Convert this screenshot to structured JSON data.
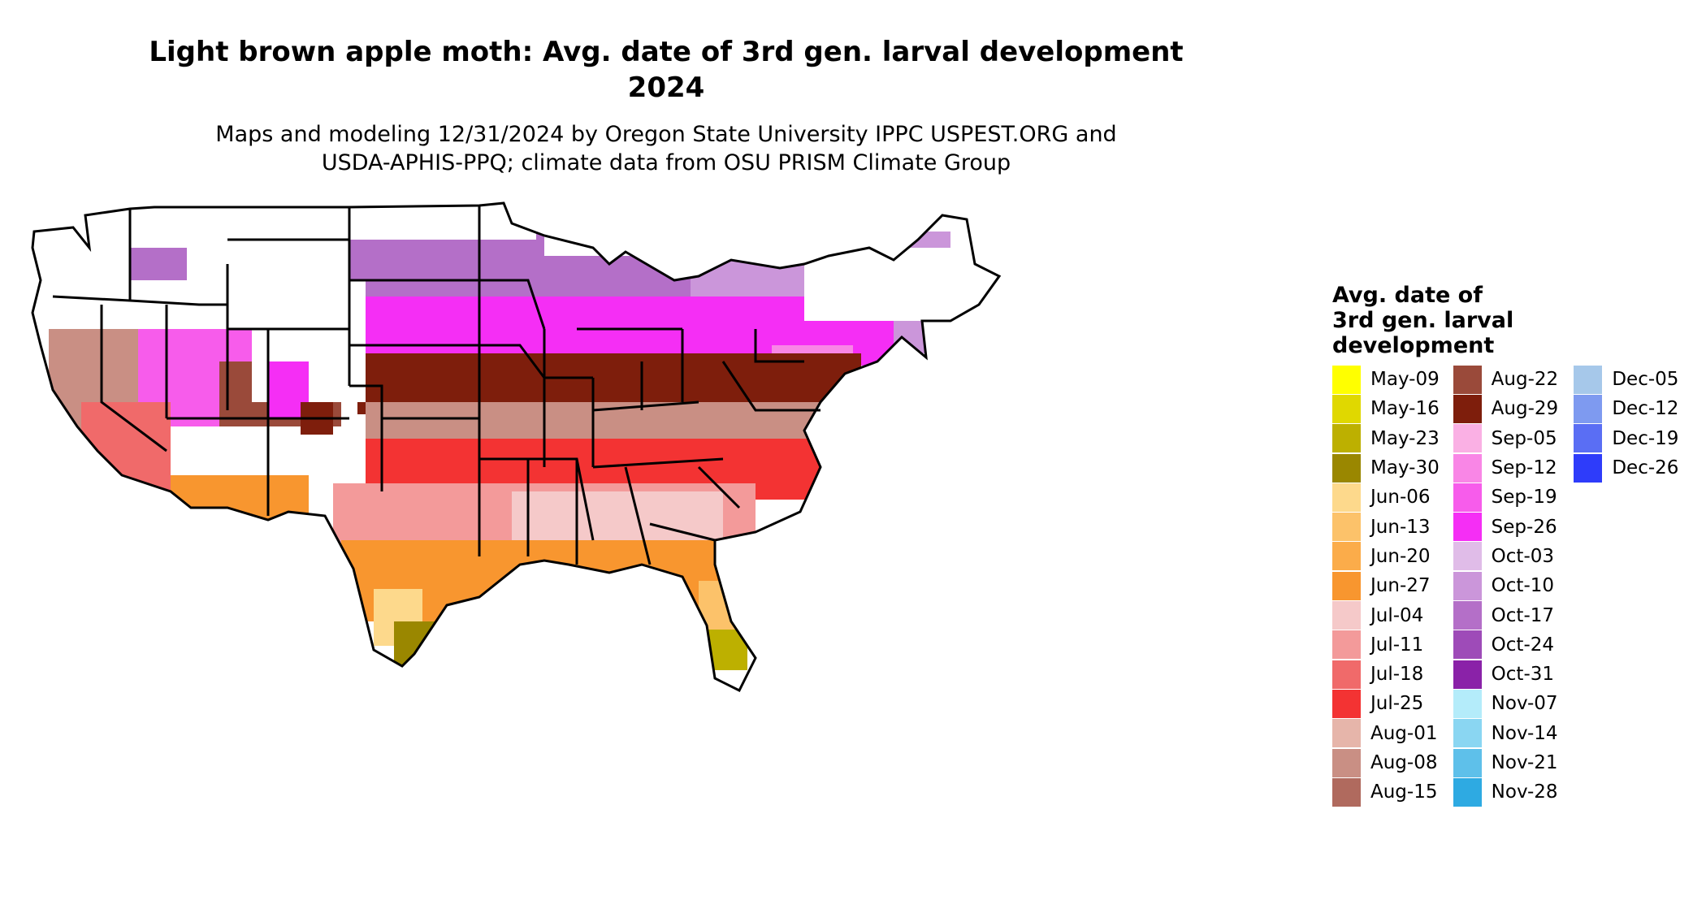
{
  "title": "Light brown apple moth: Avg. date of 3rd gen. larval development",
  "year": "2024",
  "subtitle_line1": "Maps and modeling 12/31/2024 by Oregon State University IPPC USPEST.ORG and",
  "subtitle_line2": "USDA-APHIS-PPQ; climate data from OSU PRISM Climate Group",
  "legend": {
    "title_line1": "Avg. date of",
    "title_line2": "3rd gen. larval",
    "title_line3": "development",
    "columns": [
      [
        {
          "label": "May-09",
          "color": "#ffff00"
        },
        {
          "label": "May-16",
          "color": "#e0d800"
        },
        {
          "label": "May-23",
          "color": "#bdb000"
        },
        {
          "label": "May-30",
          "color": "#9a8700"
        },
        {
          "label": "Jun-06",
          "color": "#fdd98c"
        },
        {
          "label": "Jun-13",
          "color": "#fcc26a"
        },
        {
          "label": "Jun-20",
          "color": "#fbac4a"
        },
        {
          "label": "Jun-27",
          "color": "#f8962f"
        },
        {
          "label": "Jul-04",
          "color": "#f5c9c9"
        },
        {
          "label": "Jul-11",
          "color": "#f39a9a"
        },
        {
          "label": "Jul-18",
          "color": "#f06a6a"
        },
        {
          "label": "Jul-25",
          "color": "#f33333"
        },
        {
          "label": "Aug-01",
          "color": "#e6b5aa"
        },
        {
          "label": "Aug-08",
          "color": "#c98f84"
        },
        {
          "label": "Aug-15",
          "color": "#b06a5e"
        }
      ],
      [
        {
          "label": "Aug-22",
          "color": "#9a4a3a"
        },
        {
          "label": "Aug-29",
          "color": "#7e1e0c"
        },
        {
          "label": "Sep-05",
          "color": "#fab0e4"
        },
        {
          "label": "Sep-12",
          "color": "#f986e6"
        },
        {
          "label": "Sep-19",
          "color": "#f75ceb"
        },
        {
          "label": "Sep-26",
          "color": "#f52ef5"
        },
        {
          "label": "Oct-03",
          "color": "#e0bce8"
        },
        {
          "label": "Oct-10",
          "color": "#cb96da"
        },
        {
          "label": "Oct-17",
          "color": "#b46fc8"
        },
        {
          "label": "Oct-24",
          "color": "#9e4bb8"
        },
        {
          "label": "Oct-31",
          "color": "#8a22a8"
        },
        {
          "label": "Nov-07",
          "color": "#b4ecfa"
        },
        {
          "label": "Nov-14",
          "color": "#8ad6f2"
        },
        {
          "label": "Nov-21",
          "color": "#5ec0ea"
        },
        {
          "label": "Nov-28",
          "color": "#2eaae2"
        }
      ],
      [
        {
          "label": "Dec-05",
          "color": "#a6c8ea"
        },
        {
          "label": "Dec-12",
          "color": "#7e9af0"
        },
        {
          "label": "Dec-19",
          "color": "#5a6ef4"
        },
        {
          "label": "Dec-26",
          "color": "#2e3cfa"
        }
      ]
    ]
  }
}
